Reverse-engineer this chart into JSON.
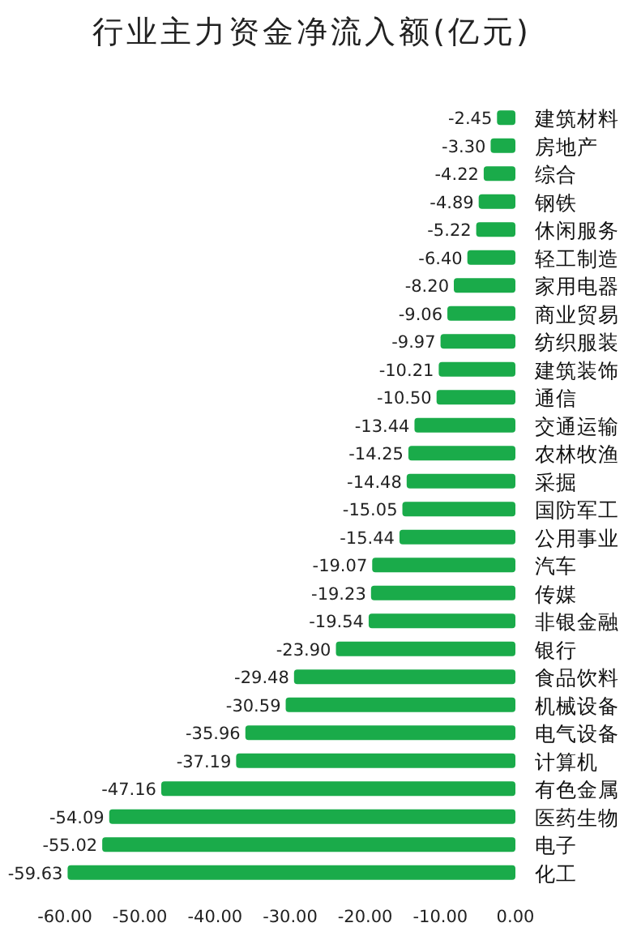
{
  "chart_data": {
    "type": "bar",
    "orientation": "horizontal",
    "title": "行业主力资金净流入额(亿元)",
    "categories": [
      "建筑材料",
      "房地产",
      "综合",
      "钢铁",
      "休闲服务",
      "轻工制造",
      "家用电器",
      "商业贸易",
      "纺织服装",
      "建筑装饰",
      "通信",
      "交通运输",
      "农林牧渔",
      "采掘",
      "国防军工",
      "公用事业",
      "汽车",
      "传媒",
      "非银金融",
      "银行",
      "食品饮料",
      "机械设备",
      "电气设备",
      "计算机",
      "有色金属",
      "医药生物",
      "电子",
      "化工"
    ],
    "values": [
      -2.45,
      -3.3,
      -4.22,
      -4.89,
      -5.22,
      -6.4,
      -8.2,
      -9.06,
      -9.97,
      -10.21,
      -10.5,
      -13.44,
      -14.25,
      -14.48,
      -15.05,
      -15.44,
      -19.07,
      -19.23,
      -19.54,
      -23.9,
      -29.48,
      -30.59,
      -35.96,
      -37.19,
      -47.16,
      -54.09,
      -55.02,
      -59.63
    ],
    "value_labels": [
      "-2.45",
      "-3.30",
      "-4.22",
      "-4.89",
      "-5.22",
      "-6.40",
      "-8.20",
      "-9.06",
      "-9.97",
      "-10.21",
      "-10.50",
      "-13.44",
      "-14.25",
      "-14.48",
      "-15.05",
      "-15.44",
      "-19.07",
      "-19.23",
      "-19.54",
      "-23.90",
      "-29.48",
      "-30.59",
      "-35.96",
      "-37.19",
      "-47.16",
      "-54.09",
      "-55.02",
      "-59.63"
    ],
    "color": "#1aab4a",
    "xlim": [
      -60,
      0
    ],
    "xticks": [
      {
        "value": -60,
        "label": "-60.00"
      },
      {
        "value": -50,
        "label": "-50.00"
      },
      {
        "value": -40,
        "label": "-40.00"
      },
      {
        "value": -30,
        "label": "-30.00"
      },
      {
        "value": -20,
        "label": "-20.00"
      },
      {
        "value": -10,
        "label": "-10.00"
      },
      {
        "value": 0,
        "label": "0.00"
      }
    ],
    "grid": false
  }
}
